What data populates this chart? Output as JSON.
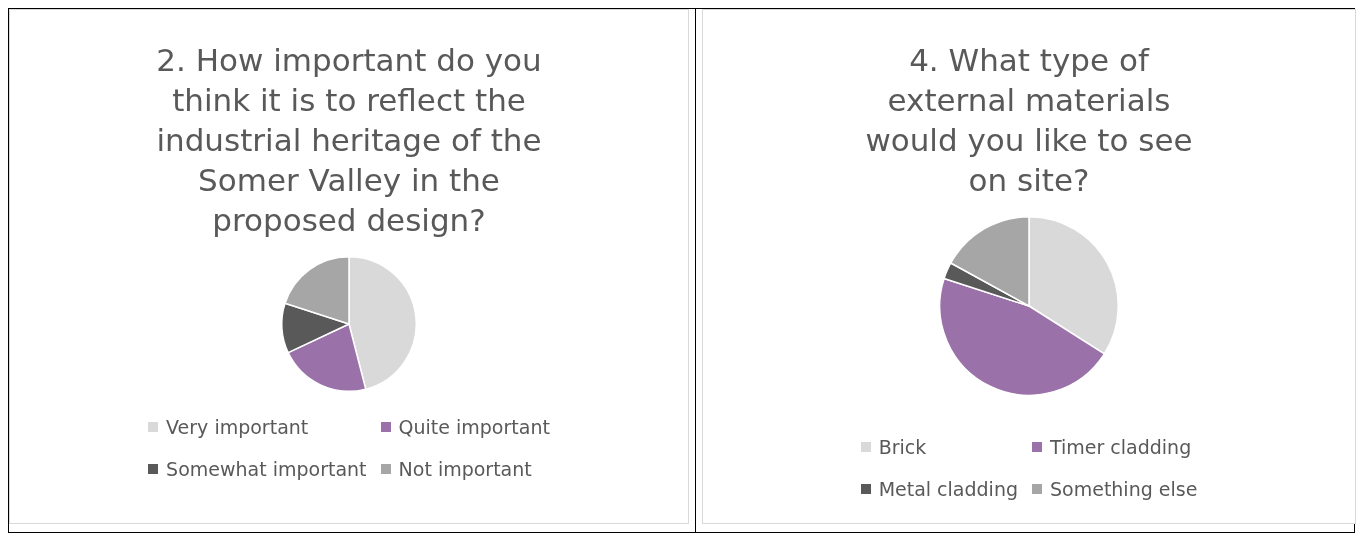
{
  "chart_data": [
    {
      "type": "pie",
      "title": "2. How important do you think it is to reflect the industrial heritage of the Somer Valley in the proposed design?",
      "categories": [
        "Very important",
        "Quite important",
        "Somewhat important",
        "Not important"
      ],
      "values": [
        46,
        22,
        12,
        20
      ],
      "colors": [
        "#d9d9d9",
        "#9a72a9",
        "#595959",
        "#a6a6a6"
      ],
      "legend": "bottom"
    },
    {
      "type": "pie",
      "title": "4. What type of external materials would you like to see on site?",
      "categories": [
        "Brick",
        "Timer cladding",
        "Metal cladding",
        "Something else"
      ],
      "values": [
        34,
        46,
        3,
        17
      ],
      "colors": [
        "#d9d9d9",
        "#9a72a9",
        "#595959",
        "#a6a6a6"
      ],
      "legend": "bottom"
    }
  ]
}
